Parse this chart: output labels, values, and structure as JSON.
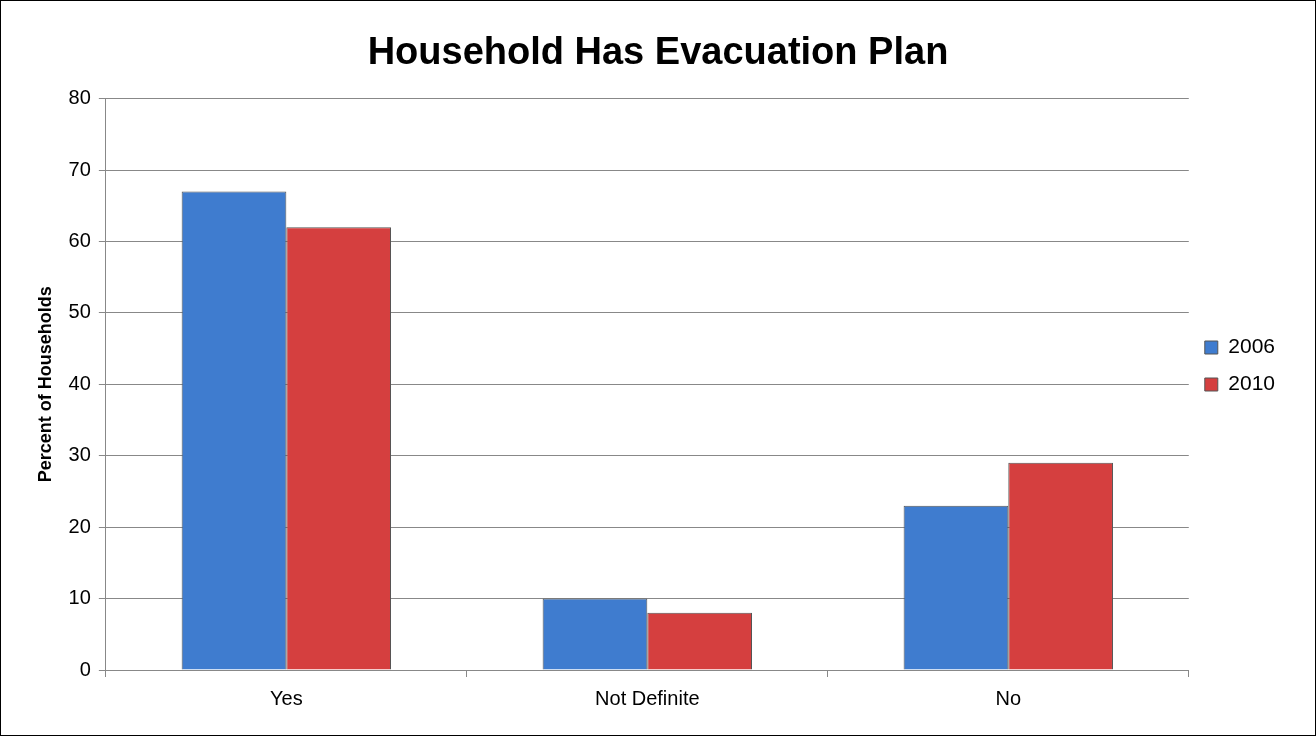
{
  "chart_data": {
    "type": "bar",
    "title": "Household Has Evacuation Plan",
    "ylabel": "Percent of Households",
    "categories": [
      "Yes",
      "Not Definite",
      "No"
    ],
    "series": [
      {
        "name": "2006",
        "color": "#3f7ccf",
        "values": [
          67,
          10,
          23
        ]
      },
      {
        "name": "2010",
        "color": "#d53f3f",
        "values": [
          62,
          8,
          29
        ]
      }
    ],
    "ylim": [
      0,
      80
    ],
    "yticks": [
      0,
      10,
      20,
      30,
      40,
      50,
      60,
      70,
      80
    ],
    "grid": "y",
    "legend": "right"
  }
}
